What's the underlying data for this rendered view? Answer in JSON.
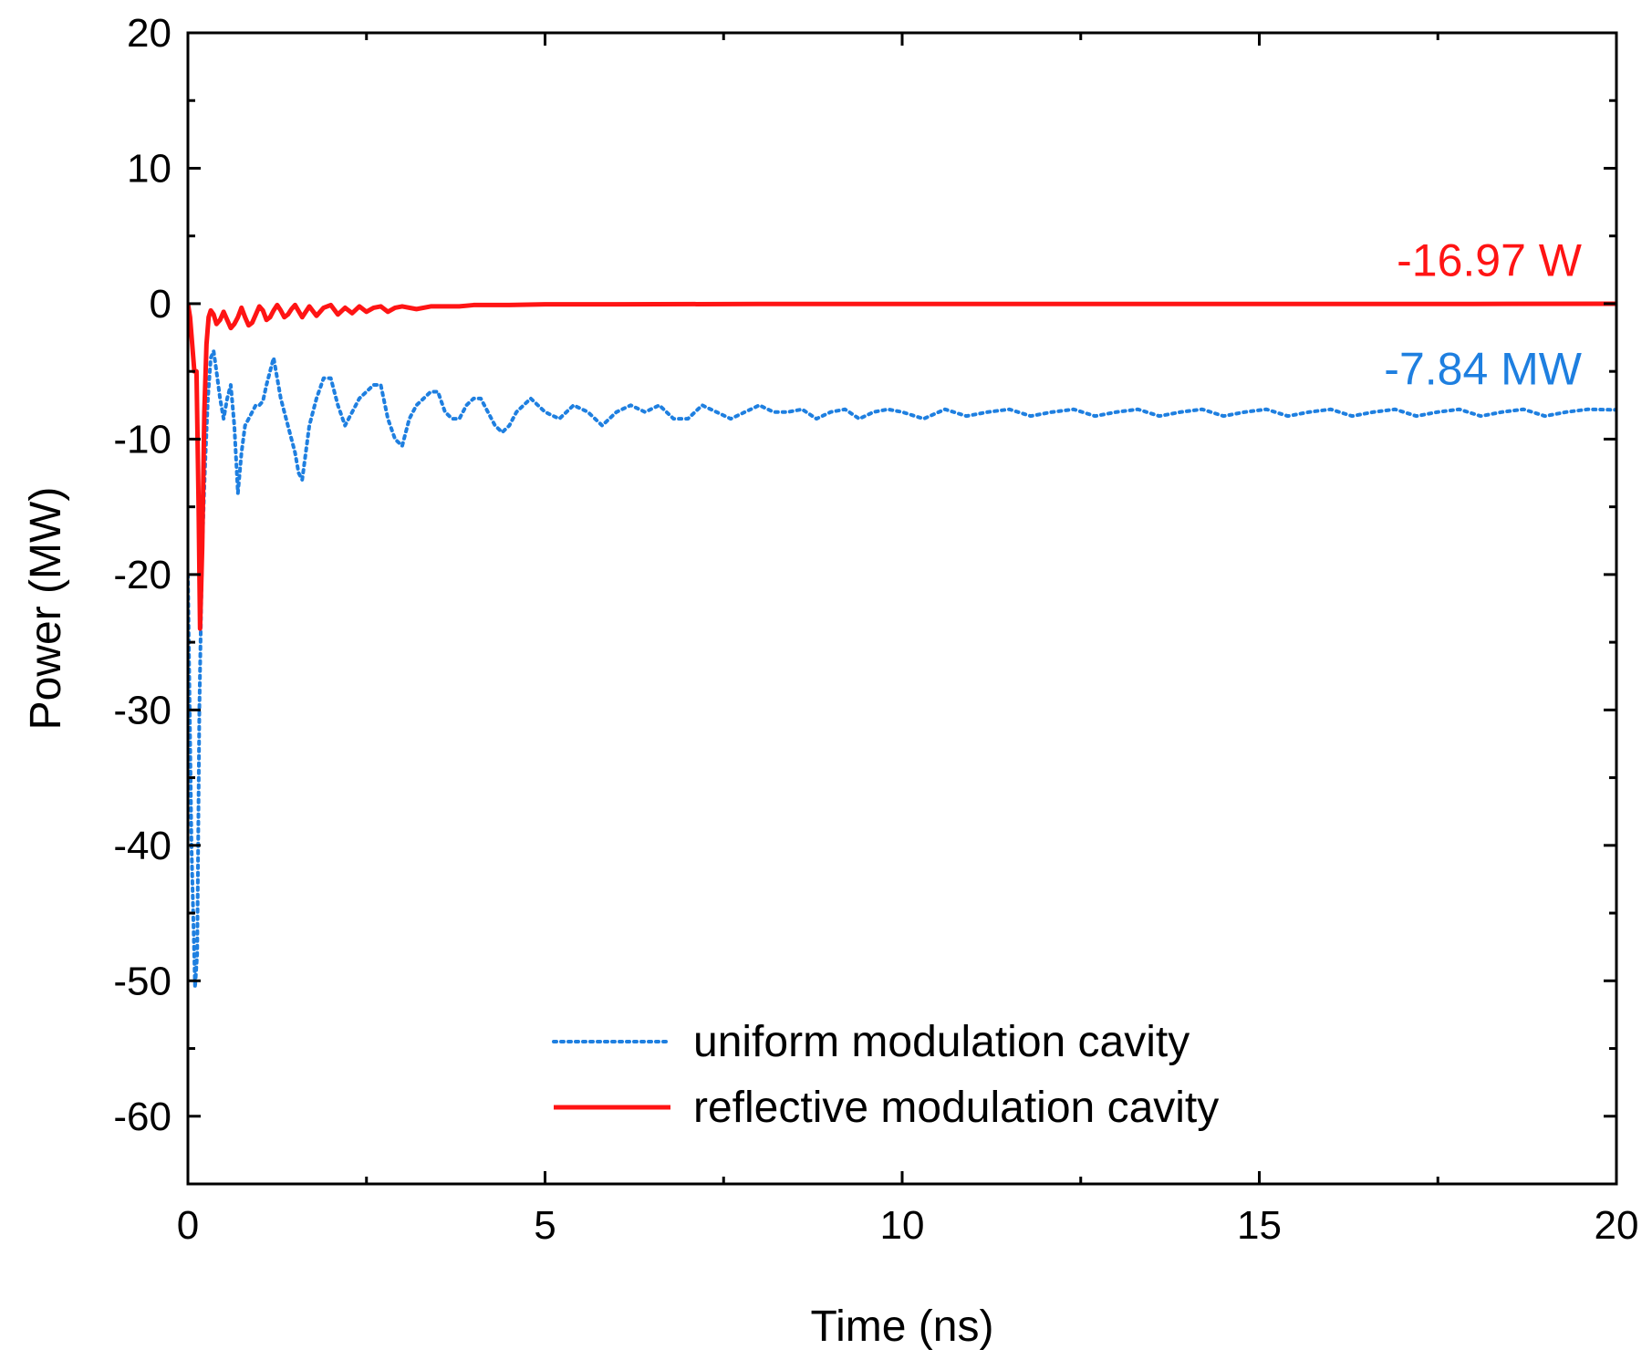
{
  "chart_data": {
    "type": "line",
    "title": "",
    "xlabel": "Time (ns)",
    "ylabel": "Power (MW)",
    "xlim": [
      0,
      20
    ],
    "ylim": [
      -65,
      20
    ],
    "x_ticks": [
      0,
      5,
      10,
      15,
      20
    ],
    "x_tick_labels": [
      "0",
      "5",
      "10",
      "15",
      "20"
    ],
    "y_ticks": [
      -60,
      -50,
      -40,
      -30,
      -20,
      -10,
      0,
      10,
      20
    ],
    "y_tick_labels": [
      "-60",
      "-50",
      "-40",
      "-30",
      "-20",
      "-10",
      "0",
      "10",
      "20"
    ],
    "grid": false,
    "legend_position": "bottom-center",
    "series": [
      {
        "name": "uniform modulation cavity",
        "style": "dotted",
        "color": "#1e7fe0",
        "x": [
          0,
          0.05,
          0.1,
          0.13,
          0.16,
          0.2,
          0.24,
          0.28,
          0.32,
          0.36,
          0.4,
          0.45,
          0.5,
          0.55,
          0.6,
          0.65,
          0.7,
          0.75,
          0.8,
          0.85,
          0.9,
          0.95,
          1.0,
          1.05,
          1.1,
          1.15,
          1.2,
          1.3,
          1.4,
          1.5,
          1.55,
          1.6,
          1.7,
          1.8,
          1.9,
          2.0,
          2.1,
          2.2,
          2.3,
          2.4,
          2.5,
          2.6,
          2.7,
          2.8,
          2.9,
          3.0,
          3.1,
          3.2,
          3.3,
          3.4,
          3.5,
          3.6,
          3.7,
          3.8,
          3.9,
          4.0,
          4.1,
          4.2,
          4.3,
          4.4,
          4.5,
          4.6,
          4.7,
          4.8,
          4.9,
          5.0,
          5.2,
          5.4,
          5.6,
          5.8,
          6.0,
          6.2,
          6.4,
          6.6,
          6.8,
          7.0,
          7.2,
          7.4,
          7.6,
          7.8,
          8.0,
          8.2,
          8.4,
          8.6,
          8.8,
          9.0,
          9.2,
          9.4,
          9.6,
          9.8,
          10.0,
          10.3,
          10.6,
          10.9,
          11.2,
          11.5,
          11.8,
          12.1,
          12.4,
          12.7,
          13.0,
          13.3,
          13.6,
          13.9,
          14.2,
          14.5,
          14.8,
          15.1,
          15.4,
          15.7,
          16.0,
          16.3,
          16.6,
          16.9,
          17.2,
          17.5,
          17.8,
          18.1,
          18.4,
          18.7,
          19.0,
          19.3,
          19.6,
          20.0
        ],
        "values": [
          -20,
          -40,
          -50.5,
          -48,
          -30,
          -18,
          -12,
          -7,
          -4,
          -3.5,
          -5,
          -7,
          -8.5,
          -7,
          -6,
          -9,
          -14,
          -11,
          -9,
          -8.5,
          -8,
          -7.5,
          -7.5,
          -7.2,
          -6,
          -5,
          -4,
          -7,
          -9,
          -11,
          -12.5,
          -13,
          -9,
          -7,
          -5.5,
          -5.5,
          -7.5,
          -9,
          -8,
          -7,
          -6.5,
          -6,
          -6,
          -8.5,
          -10,
          -10.5,
          -8.5,
          -7.5,
          -7,
          -6.5,
          -6.5,
          -8,
          -8.5,
          -8.5,
          -7.5,
          -7,
          -7,
          -8,
          -9,
          -9.5,
          -9,
          -8,
          -7.5,
          -7,
          -7.5,
          -8,
          -8.5,
          -7.5,
          -8,
          -9,
          -8,
          -7.5,
          -8,
          -7.5,
          -8.5,
          -8.5,
          -7.5,
          -8,
          -8.5,
          -8,
          -7.5,
          -8,
          -8,
          -7.8,
          -8.5,
          -8,
          -7.8,
          -8.5,
          -8,
          -7.8,
          -8,
          -8.5,
          -7.8,
          -8.3,
          -8,
          -7.8,
          -8.3,
          -8,
          -7.8,
          -8.3,
          -8,
          -7.8,
          -8.3,
          -8,
          -7.8,
          -8.3,
          -8,
          -7.8,
          -8.3,
          -8,
          -7.8,
          -8.3,
          -8,
          -7.8,
          -8.3,
          -8,
          -7.8,
          -8.3,
          -8,
          -7.8,
          -8.3,
          -8,
          -7.8,
          -7.84
        ]
      },
      {
        "name": "reflective modulation cavity",
        "style": "solid",
        "color": "#ff1414",
        "x": [
          0,
          0.03,
          0.06,
          0.09,
          0.12,
          0.15,
          0.17,
          0.2,
          0.23,
          0.26,
          0.29,
          0.32,
          0.36,
          0.4,
          0.45,
          0.5,
          0.55,
          0.6,
          0.65,
          0.7,
          0.75,
          0.8,
          0.85,
          0.9,
          0.95,
          1.0,
          1.05,
          1.1,
          1.15,
          1.2,
          1.25,
          1.3,
          1.35,
          1.4,
          1.45,
          1.5,
          1.6,
          1.7,
          1.8,
          1.9,
          2.0,
          2.1,
          2.2,
          2.3,
          2.4,
          2.5,
          2.6,
          2.7,
          2.8,
          2.9,
          3.0,
          3.2,
          3.4,
          3.6,
          3.8,
          4.0,
          4.5,
          5.0,
          6.0,
          8.0,
          10.0,
          12.0,
          14.0,
          16.0,
          18.0,
          20.0
        ],
        "values": [
          0,
          -1,
          -3,
          -5,
          -5,
          -15,
          -24,
          -18,
          -8,
          -3,
          -1,
          -0.5,
          -0.8,
          -1.5,
          -1.2,
          -0.6,
          -1.2,
          -1.8,
          -1.5,
          -1.0,
          -0.3,
          -1.0,
          -1.6,
          -1.4,
          -0.8,
          -0.2,
          -0.5,
          -1.2,
          -1.0,
          -0.5,
          -0.1,
          -0.5,
          -1.0,
          -0.8,
          -0.4,
          -0.1,
          -1.0,
          -0.2,
          -0.9,
          -0.3,
          -0.1,
          -0.8,
          -0.3,
          -0.7,
          -0.2,
          -0.6,
          -0.3,
          -0.2,
          -0.6,
          -0.3,
          -0.2,
          -0.4,
          -0.2,
          -0.2,
          -0.2,
          -0.1,
          -0.1,
          -0.05,
          -0.05,
          -0.02,
          -0.02,
          -0.02,
          -0.02,
          -0.02,
          -0.02,
          -2e-05
        ]
      }
    ],
    "annotations": [
      {
        "text": "-16.97 W",
        "color": "#ff1414",
        "x": 20,
        "y": 1.5
      },
      {
        "text": "-7.84 MW",
        "color": "#1e7fe0",
        "x": 20,
        "y": -6.5
      }
    ]
  }
}
